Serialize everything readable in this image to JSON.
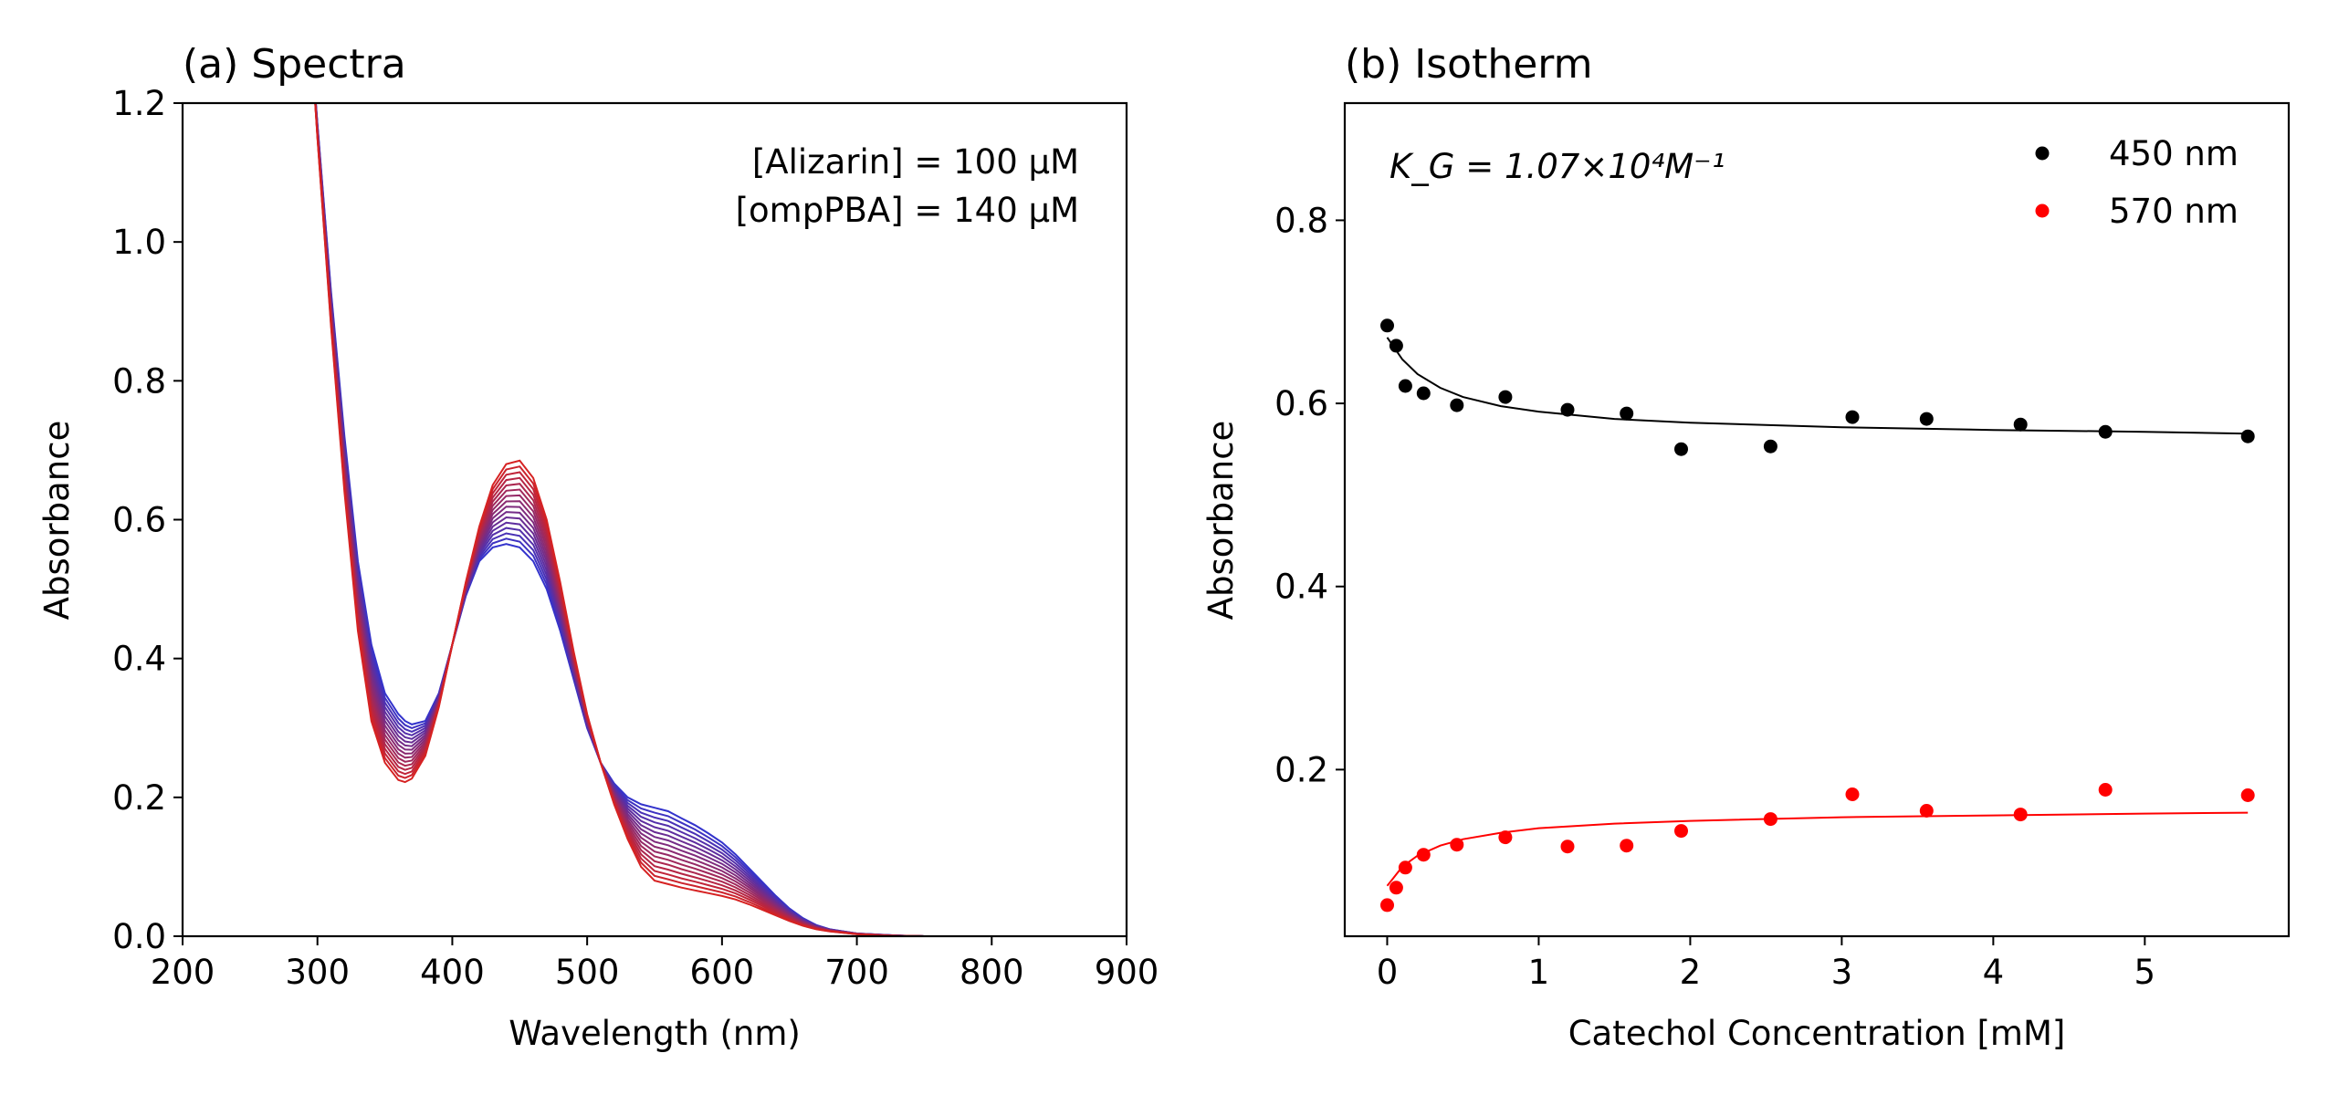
{
  "chart_data": [
    {
      "type": "line",
      "title": "(a) Spectra",
      "xlabel": "Wavelength (nm)",
      "ylabel": "Absorbance",
      "xlim": [
        200,
        900
      ],
      "ylim": [
        0.0,
        1.2
      ],
      "xticks": [
        "200",
        "300",
        "400",
        "500",
        "600",
        "700",
        "800",
        "900"
      ],
      "yticks": [
        "0.0",
        "0.2",
        "0.4",
        "0.6",
        "0.8",
        "1.0",
        "1.2"
      ],
      "annotations": [
        "[Alizarin] = 100 μM",
        "[ompPBA] = 140 μM"
      ],
      "grid": false,
      "curve_count": 16,
      "x": [
        295,
        300,
        310,
        320,
        330,
        340,
        350,
        360,
        365,
        370,
        380,
        390,
        400,
        410,
        420,
        430,
        440,
        450,
        460,
        470,
        480,
        490,
        500,
        510,
        520,
        530,
        540,
        550,
        560,
        570,
        580,
        590,
        600,
        610,
        620,
        630,
        640,
        650,
        660,
        670,
        680,
        690,
        700,
        710,
        720,
        730,
        740,
        750
      ],
      "series": [
        {
          "color": "#d62222",
          "values": [
            1.3,
            1.15,
            0.88,
            0.64,
            0.44,
            0.31,
            0.25,
            0.225,
            0.222,
            0.227,
            0.26,
            0.33,
            0.42,
            0.51,
            0.59,
            0.65,
            0.68,
            0.685,
            0.66,
            0.6,
            0.51,
            0.41,
            0.32,
            0.25,
            0.19,
            0.14,
            0.1,
            0.08,
            0.075,
            0.07,
            0.066,
            0.062,
            0.058,
            0.053,
            0.046,
            0.038,
            0.03,
            0.022,
            0.015,
            0.01,
            0.007,
            0.005,
            0.003,
            0.002,
            0.001,
            0.0005,
            0.0002,
            0.0
          ]
        },
        {
          "color": "#3333cc",
          "values": [
            1.3,
            1.17,
            0.93,
            0.72,
            0.54,
            0.42,
            0.35,
            0.32,
            0.31,
            0.305,
            0.31,
            0.35,
            0.42,
            0.49,
            0.54,
            0.56,
            0.565,
            0.56,
            0.54,
            0.5,
            0.44,
            0.37,
            0.3,
            0.25,
            0.22,
            0.2,
            0.19,
            0.185,
            0.18,
            0.17,
            0.16,
            0.148,
            0.135,
            0.118,
            0.098,
            0.078,
            0.058,
            0.04,
            0.026,
            0.016,
            0.01,
            0.007,
            0.004,
            0.003,
            0.002,
            0.001,
            0.0005,
            0.0
          ]
        }
      ]
    },
    {
      "type": "scatter",
      "title": "(b) Isotherm",
      "xlabel": "Catechol Concentration [mM]",
      "ylabel": "Absorbance",
      "xlim": [
        -0.28,
        5.95
      ],
      "ylim": [
        0.018,
        0.928
      ],
      "xticks": [
        "0",
        "1",
        "2",
        "3",
        "4",
        "5"
      ],
      "yticks": [
        "0.2",
        "0.4",
        "0.6",
        "0.8"
      ],
      "annotation": "K_G = 1.07×10⁴M⁻¹",
      "legend_position": "top-right",
      "grid": false,
      "x": [
        0.0,
        0.06,
        0.12,
        0.24,
        0.46,
        0.78,
        1.19,
        1.58,
        1.94,
        2.53,
        3.07,
        3.56,
        4.18,
        4.74,
        5.68
      ],
      "series": [
        {
          "name": "450 nm",
          "color": "#000000",
          "values": [
            0.685,
            0.663,
            0.619,
            0.611,
            0.598,
            0.607,
            0.593,
            0.589,
            0.55,
            0.553,
            0.585,
            0.583,
            0.577,
            0.569,
            0.564
          ],
          "fit": {
            "x": [
              0.0,
              0.1,
              0.2,
              0.35,
              0.5,
              0.75,
              1.0,
              1.5,
              2.0,
              3.0,
              4.0,
              5.0,
              5.68
            ],
            "y": [
              0.672,
              0.648,
              0.632,
              0.617,
              0.607,
              0.597,
              0.591,
              0.583,
              0.579,
              0.574,
              0.571,
              0.569,
              0.567
            ]
          }
        },
        {
          "name": "570 nm",
          "color": "#ff0000",
          "values": [
            0.052,
            0.071,
            0.093,
            0.107,
            0.118,
            0.126,
            0.116,
            0.117,
            0.133,
            0.146,
            0.173,
            0.155,
            0.151,
            0.178,
            0.172
          ],
          "fit": {
            "x": [
              0.0,
              0.1,
              0.2,
              0.35,
              0.5,
              0.75,
              1.0,
              1.5,
              2.0,
              3.0,
              4.0,
              5.0,
              5.68
            ],
            "y": [
              0.073,
              0.094,
              0.106,
              0.117,
              0.124,
              0.131,
              0.136,
              0.141,
              0.144,
              0.148,
              0.15,
              0.152,
              0.153
            ]
          }
        }
      ]
    }
  ]
}
